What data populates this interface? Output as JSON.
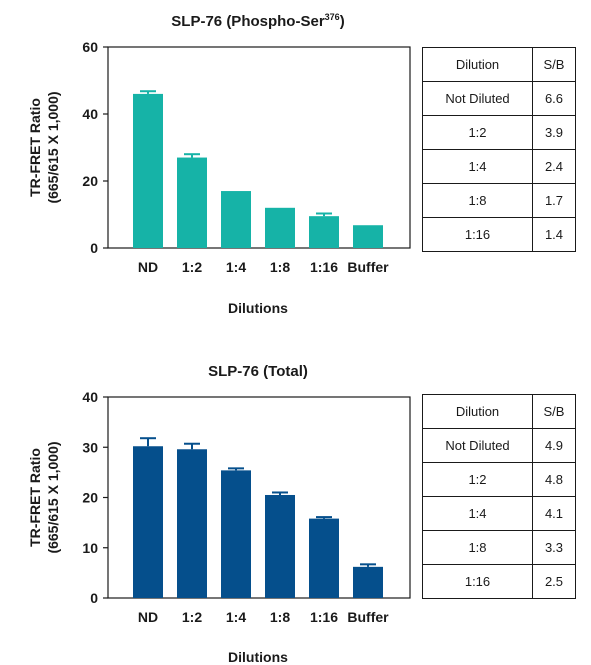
{
  "chart_data": [
    {
      "type": "bar",
      "title": "SLP-76 (Phospho-Ser",
      "title_sup": "376",
      "title_end": ")",
      "ylabel_line1": "TR-FRET Ratio",
      "ylabel_line2": "(665/615 X 1,000)",
      "xlabel": "Dilutions",
      "categories": [
        "ND",
        "1:2",
        "1:4",
        "1:8",
        "1:16",
        "Buffer"
      ],
      "values": [
        46,
        27,
        17,
        12,
        9.5,
        6.8
      ],
      "errors": [
        0.8,
        1.0,
        0,
        0,
        0.8,
        0
      ],
      "ylim": [
        0,
        60
      ],
      "yticks": [
        "0",
        "20",
        "40",
        "60"
      ],
      "ytick_values": [
        0,
        20,
        40,
        60
      ],
      "bar_color": "#16b3a7",
      "table": {
        "header": [
          "Dilution",
          "S/B"
        ],
        "rows": [
          [
            "Not Diluted",
            "6.6"
          ],
          [
            "1:2",
            "3.9"
          ],
          [
            "1:4",
            "2.4"
          ],
          [
            "1:8",
            "1.7"
          ],
          [
            "1:16",
            "1.4"
          ]
        ]
      }
    },
    {
      "type": "bar",
      "title": "SLP-76 (Total)",
      "ylabel_line1": "TR-FRET Ratio",
      "ylabel_line2": "(665/615 X 1,000)",
      "xlabel": "Dilutions",
      "categories": [
        "ND",
        "1:2",
        "1:4",
        "1:8",
        "1:16",
        "Buffer"
      ],
      "values": [
        30.2,
        29.6,
        25.4,
        20.5,
        15.8,
        6.2
      ],
      "errors": [
        1.6,
        1.1,
        0.4,
        0.5,
        0.3,
        0.5
      ],
      "ylim": [
        0,
        40
      ],
      "yticks": [
        "0",
        "10",
        "20",
        "30",
        "40"
      ],
      "ytick_values": [
        0,
        10,
        20,
        30,
        40
      ],
      "bar_color": "#054f8c",
      "table": {
        "header": [
          "Dilution",
          "S/B"
        ],
        "rows": [
          [
            "Not Diluted",
            "4.9"
          ],
          [
            "1:2",
            "4.8"
          ],
          [
            "1:4",
            "4.1"
          ],
          [
            "1:8",
            "3.3"
          ],
          [
            "1:16",
            "2.5"
          ]
        ]
      }
    }
  ]
}
